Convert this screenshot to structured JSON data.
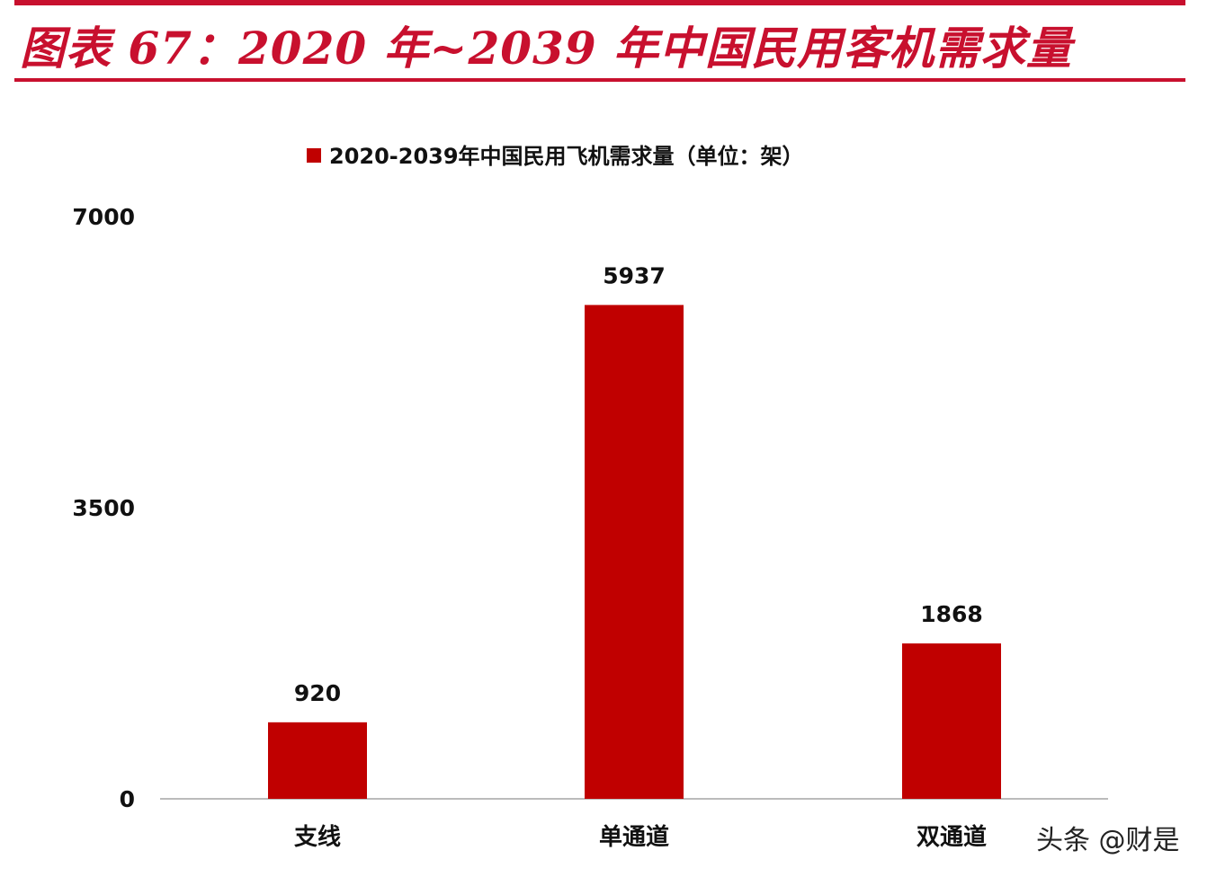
{
  "header": {
    "title": "图表 67：2020 年~2039 年中国民用客机需求量"
  },
  "watermark": "头条 @财是",
  "chart_data": {
    "type": "bar",
    "title": "",
    "legend": {
      "entries": [
        "2020-2039年中国民用飞机需求量（单位：架）"
      ],
      "placement": "top"
    },
    "categories": [
      "支线",
      "单通道",
      "双通道"
    ],
    "series": [
      {
        "name": "2020-2039年中国民用飞机需求量（单位：架）",
        "values": [
          920,
          5937,
          1868
        ],
        "color": "#c00000"
      }
    ],
    "yticks": [
      0,
      3500,
      7000
    ],
    "ylim": [
      0,
      7000
    ],
    "grid": false,
    "data_labels": true,
    "xlabel": "",
    "ylabel": ""
  }
}
